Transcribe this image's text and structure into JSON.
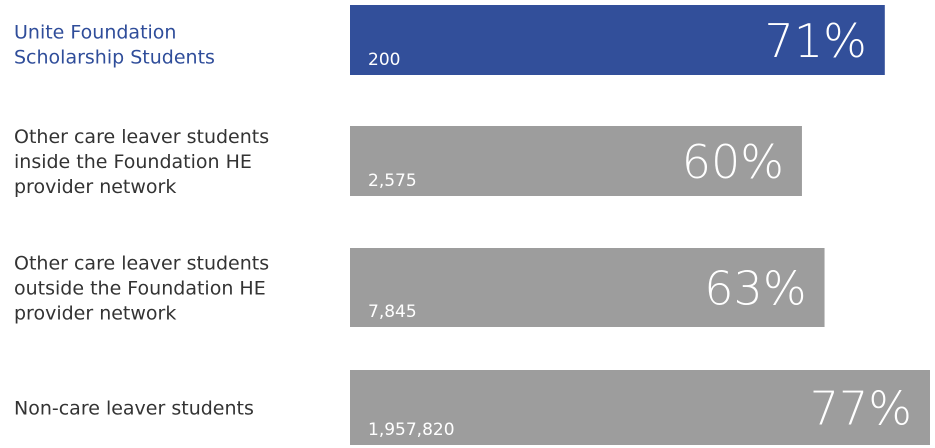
{
  "chart_data": {
    "type": "bar",
    "orientation": "horizontal",
    "categories": [
      [
        "Unite Foundation",
        "Scholarship Students"
      ],
      [
        "Other care leaver students",
        "inside the Foundation HE",
        "provider network"
      ],
      [
        "Other care leaver students",
        "outside the Foundation HE",
        "provider network"
      ],
      [
        "Non-care leaver students"
      ]
    ],
    "values": [
      71,
      60,
      63,
      77
    ],
    "value_labels": [
      "71%",
      "60%",
      "63%",
      "77%"
    ],
    "counts": [
      "200",
      "2,575",
      "7,845",
      "1,957,820"
    ],
    "colors": [
      "#324f9a",
      "#9d9d9d",
      "#9d9d9d",
      "#9d9d9d"
    ],
    "label_colors": [
      "#2f4d9a",
      "#333333",
      "#333333",
      "#333333"
    ],
    "xlim": [
      0,
      77
    ]
  }
}
